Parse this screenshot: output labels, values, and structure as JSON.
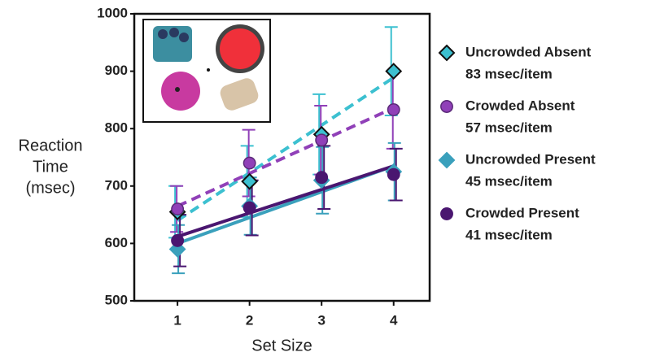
{
  "chart_data": {
    "type": "line",
    "xlabel": "Set Size",
    "ylabel": [
      "Reaction",
      "Time",
      "(msec)"
    ],
    "x": [
      1,
      2,
      3,
      4
    ],
    "xlim": [
      0.4,
      4.5
    ],
    "xticks": [
      1,
      2,
      3,
      4
    ],
    "ylim": [
      500,
      1000
    ],
    "yticks": [
      500,
      600,
      700,
      800,
      900,
      1000
    ],
    "series": [
      {
        "name": "Uncrowded Absent",
        "note": "83 msec/item",
        "color": "#3cc0d0",
        "marker": "diamond",
        "outline": "#111",
        "dashed": true,
        "values": [
          655,
          708,
          790,
          900
        ],
        "errors": [
          45,
          62,
          70,
          77
        ],
        "fit": [
          640,
          889
        ]
      },
      {
        "name": "Crowded Absent",
        "note": "57 msec/item",
        "color": "#9040b8",
        "marker": "circle",
        "outline": "#5a2a78",
        "dashed": true,
        "values": [
          660,
          740,
          780,
          833
        ],
        "errors": [
          40,
          58,
          60,
          68
        ],
        "fit": [
          665,
          836
        ]
      },
      {
        "name": "Uncrowded Present",
        "note": "45 msec/item",
        "color": "#3aa0bc",
        "marker": "diamond",
        "outline": "#3aa0bc",
        "dashed": false,
        "values": [
          590,
          665,
          710,
          725
        ],
        "errors": [
          42,
          50,
          58,
          50
        ],
        "fit": [
          600,
          735
        ]
      },
      {
        "name": "Crowded Present",
        "note": "41 msec/item",
        "color": "#4a1670",
        "marker": "circle",
        "outline": "#4a1670",
        "dashed": false,
        "values": [
          605,
          662,
          715,
          720
        ],
        "errors": [
          45,
          48,
          55,
          45
        ],
        "fit": [
          612,
          735
        ]
      }
    ]
  }
}
